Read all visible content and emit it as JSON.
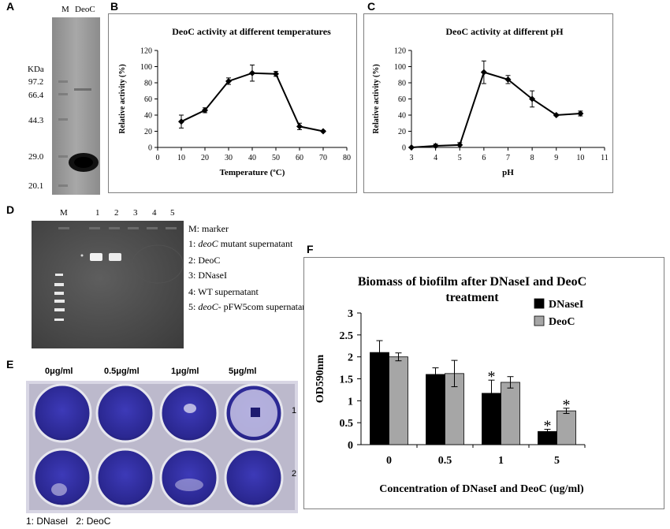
{
  "panels": {
    "a": {
      "letter": "A",
      "lane_labels": [
        "M",
        "DeoC"
      ],
      "unit": "KDa",
      "markers": [
        "97.2",
        "66.4",
        "44.3",
        "29.0",
        "20.1"
      ]
    },
    "d": {
      "letter": "D",
      "lanes": [
        "M",
        "1",
        "2",
        "3",
        "4",
        "5"
      ],
      "legend": {
        "marker": "M: marker",
        "l1_prefix": "1: ",
        "l1_italic": "deoC",
        "l1_rest": " mutant supernatant",
        "l2": "2: DeoC",
        "l3": "3: DNaseI",
        "l4": "4: WT supernatant",
        "l5_prefix": "5: ",
        "l5_italic": "deoC-",
        "l5_rest": " pFW5com supernatant"
      }
    },
    "e": {
      "letter": "E",
      "concentrations": [
        "0μg/ml",
        "0.5μg/ml",
        "1μg/ml",
        "5μg/ml"
      ],
      "rows": [
        "1",
        "2"
      ],
      "legend": "1: DNaseI   2: DeoC"
    }
  },
  "chart_data": [
    {
      "id": "B",
      "letter": "B",
      "type": "line",
      "title": "DeoC activity at different temperatures",
      "xlabel": "Temperature (ºC)",
      "ylabel": "Relative activity (%)",
      "xlim": [
        0,
        80
      ],
      "ylim": [
        0,
        120
      ],
      "xticks": [
        "0",
        "10",
        "20",
        "30",
        "40",
        "50",
        "60",
        "70",
        "80"
      ],
      "yticks": [
        "0",
        "20",
        "40",
        "60",
        "80",
        "100",
        "120"
      ],
      "x": [
        10,
        20,
        30,
        40,
        50,
        60,
        70
      ],
      "y": [
        32,
        46,
        82,
        92,
        91,
        26,
        20
      ],
      "err": [
        8,
        3,
        4,
        10,
        3,
        4,
        1
      ]
    },
    {
      "id": "C",
      "letter": "C",
      "type": "line",
      "title": "DeoC activity at different pH",
      "xlabel": "pH",
      "ylabel": "Relative activity (%)",
      "xlim": [
        3,
        11
      ],
      "ylim": [
        0,
        120
      ],
      "xticks": [
        "3",
        "4",
        "5",
        "6",
        "7",
        "8",
        "9",
        "10",
        "11"
      ],
      "yticks": [
        "0",
        "20",
        "40",
        "60",
        "80",
        "100",
        "120"
      ],
      "x": [
        3,
        4,
        5,
        6,
        7,
        8,
        9,
        10
      ],
      "y": [
        0,
        2,
        3,
        93,
        84,
        60,
        40,
        42
      ],
      "err": [
        0,
        2,
        3,
        14,
        5,
        10,
        1,
        3
      ]
    },
    {
      "id": "F",
      "letter": "F",
      "type": "bar",
      "title_line1": "Biomass of biofilm after DNaseI and DeoC",
      "title_line2": "treatment",
      "xlabel": "Concentration of DNaseI and DeoC (ug/ml)",
      "ylabel": "OD590nm",
      "ylim": [
        0,
        3
      ],
      "yticks": [
        "0",
        "0.5",
        "1",
        "1.5",
        "2",
        "2.5",
        "3"
      ],
      "categories": [
        "0",
        "0.5",
        "1",
        "5"
      ],
      "series": [
        {
          "name": "DNaseI",
          "color": "#000000",
          "values": [
            2.1,
            1.6,
            1.17,
            0.3
          ],
          "err": [
            0.27,
            0.15,
            0.3,
            0.05
          ],
          "sig": [
            "",
            "",
            "*",
            "*"
          ]
        },
        {
          "name": "DeoC",
          "color": "#a6a6a6",
          "values": [
            2.0,
            1.62,
            1.42,
            0.77
          ],
          "err": [
            0.09,
            0.3,
            0.13,
            0.06
          ],
          "sig": [
            "",
            "",
            "",
            "*"
          ]
        }
      ]
    }
  ]
}
